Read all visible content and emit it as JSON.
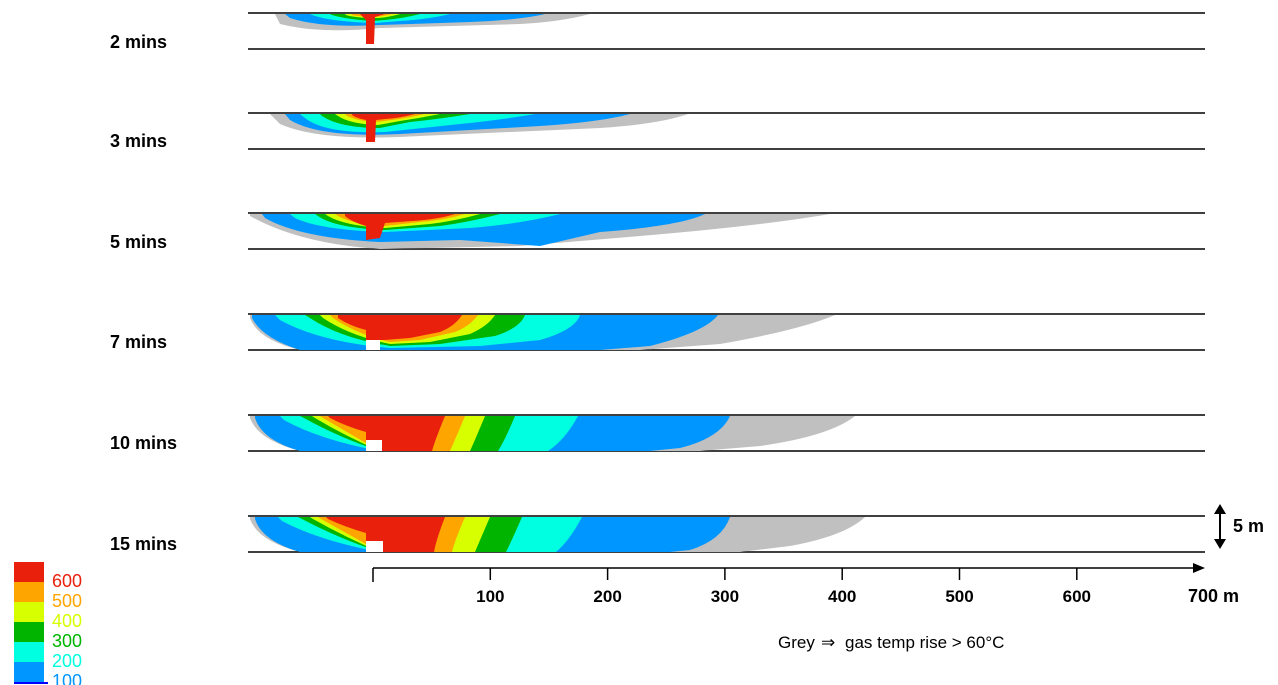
{
  "panels": [
    {
      "label": "2 mins"
    },
    {
      "label": "3 mins"
    },
    {
      "label": "5 mins"
    },
    {
      "label": "7 mins"
    },
    {
      "label": "10 mins"
    },
    {
      "label": "15 mins"
    }
  ],
  "axis": {
    "ticks": [
      "100",
      "200",
      "300",
      "400",
      "500",
      "600"
    ],
    "end_label": "700 m",
    "height_scale_label": "5 m"
  },
  "legend": {
    "entries": [
      {
        "label": "600",
        "color": "#e8200c"
      },
      {
        "label": "500",
        "color": "#ffa500"
      },
      {
        "label": "400",
        "color": "#d8ff00"
      },
      {
        "label": "300",
        "color": "#00b400"
      },
      {
        "label": "200",
        "color": "#00ffe0"
      },
      {
        "label": "100",
        "color": "#0096ff"
      }
    ],
    "bottom_line_color": "#0000ff",
    "grey_color": "#c0c0c0"
  },
  "note": {
    "prefix": "Grey",
    "arrow": "⇒",
    "text": "gas temp rise > 60°C"
  }
}
